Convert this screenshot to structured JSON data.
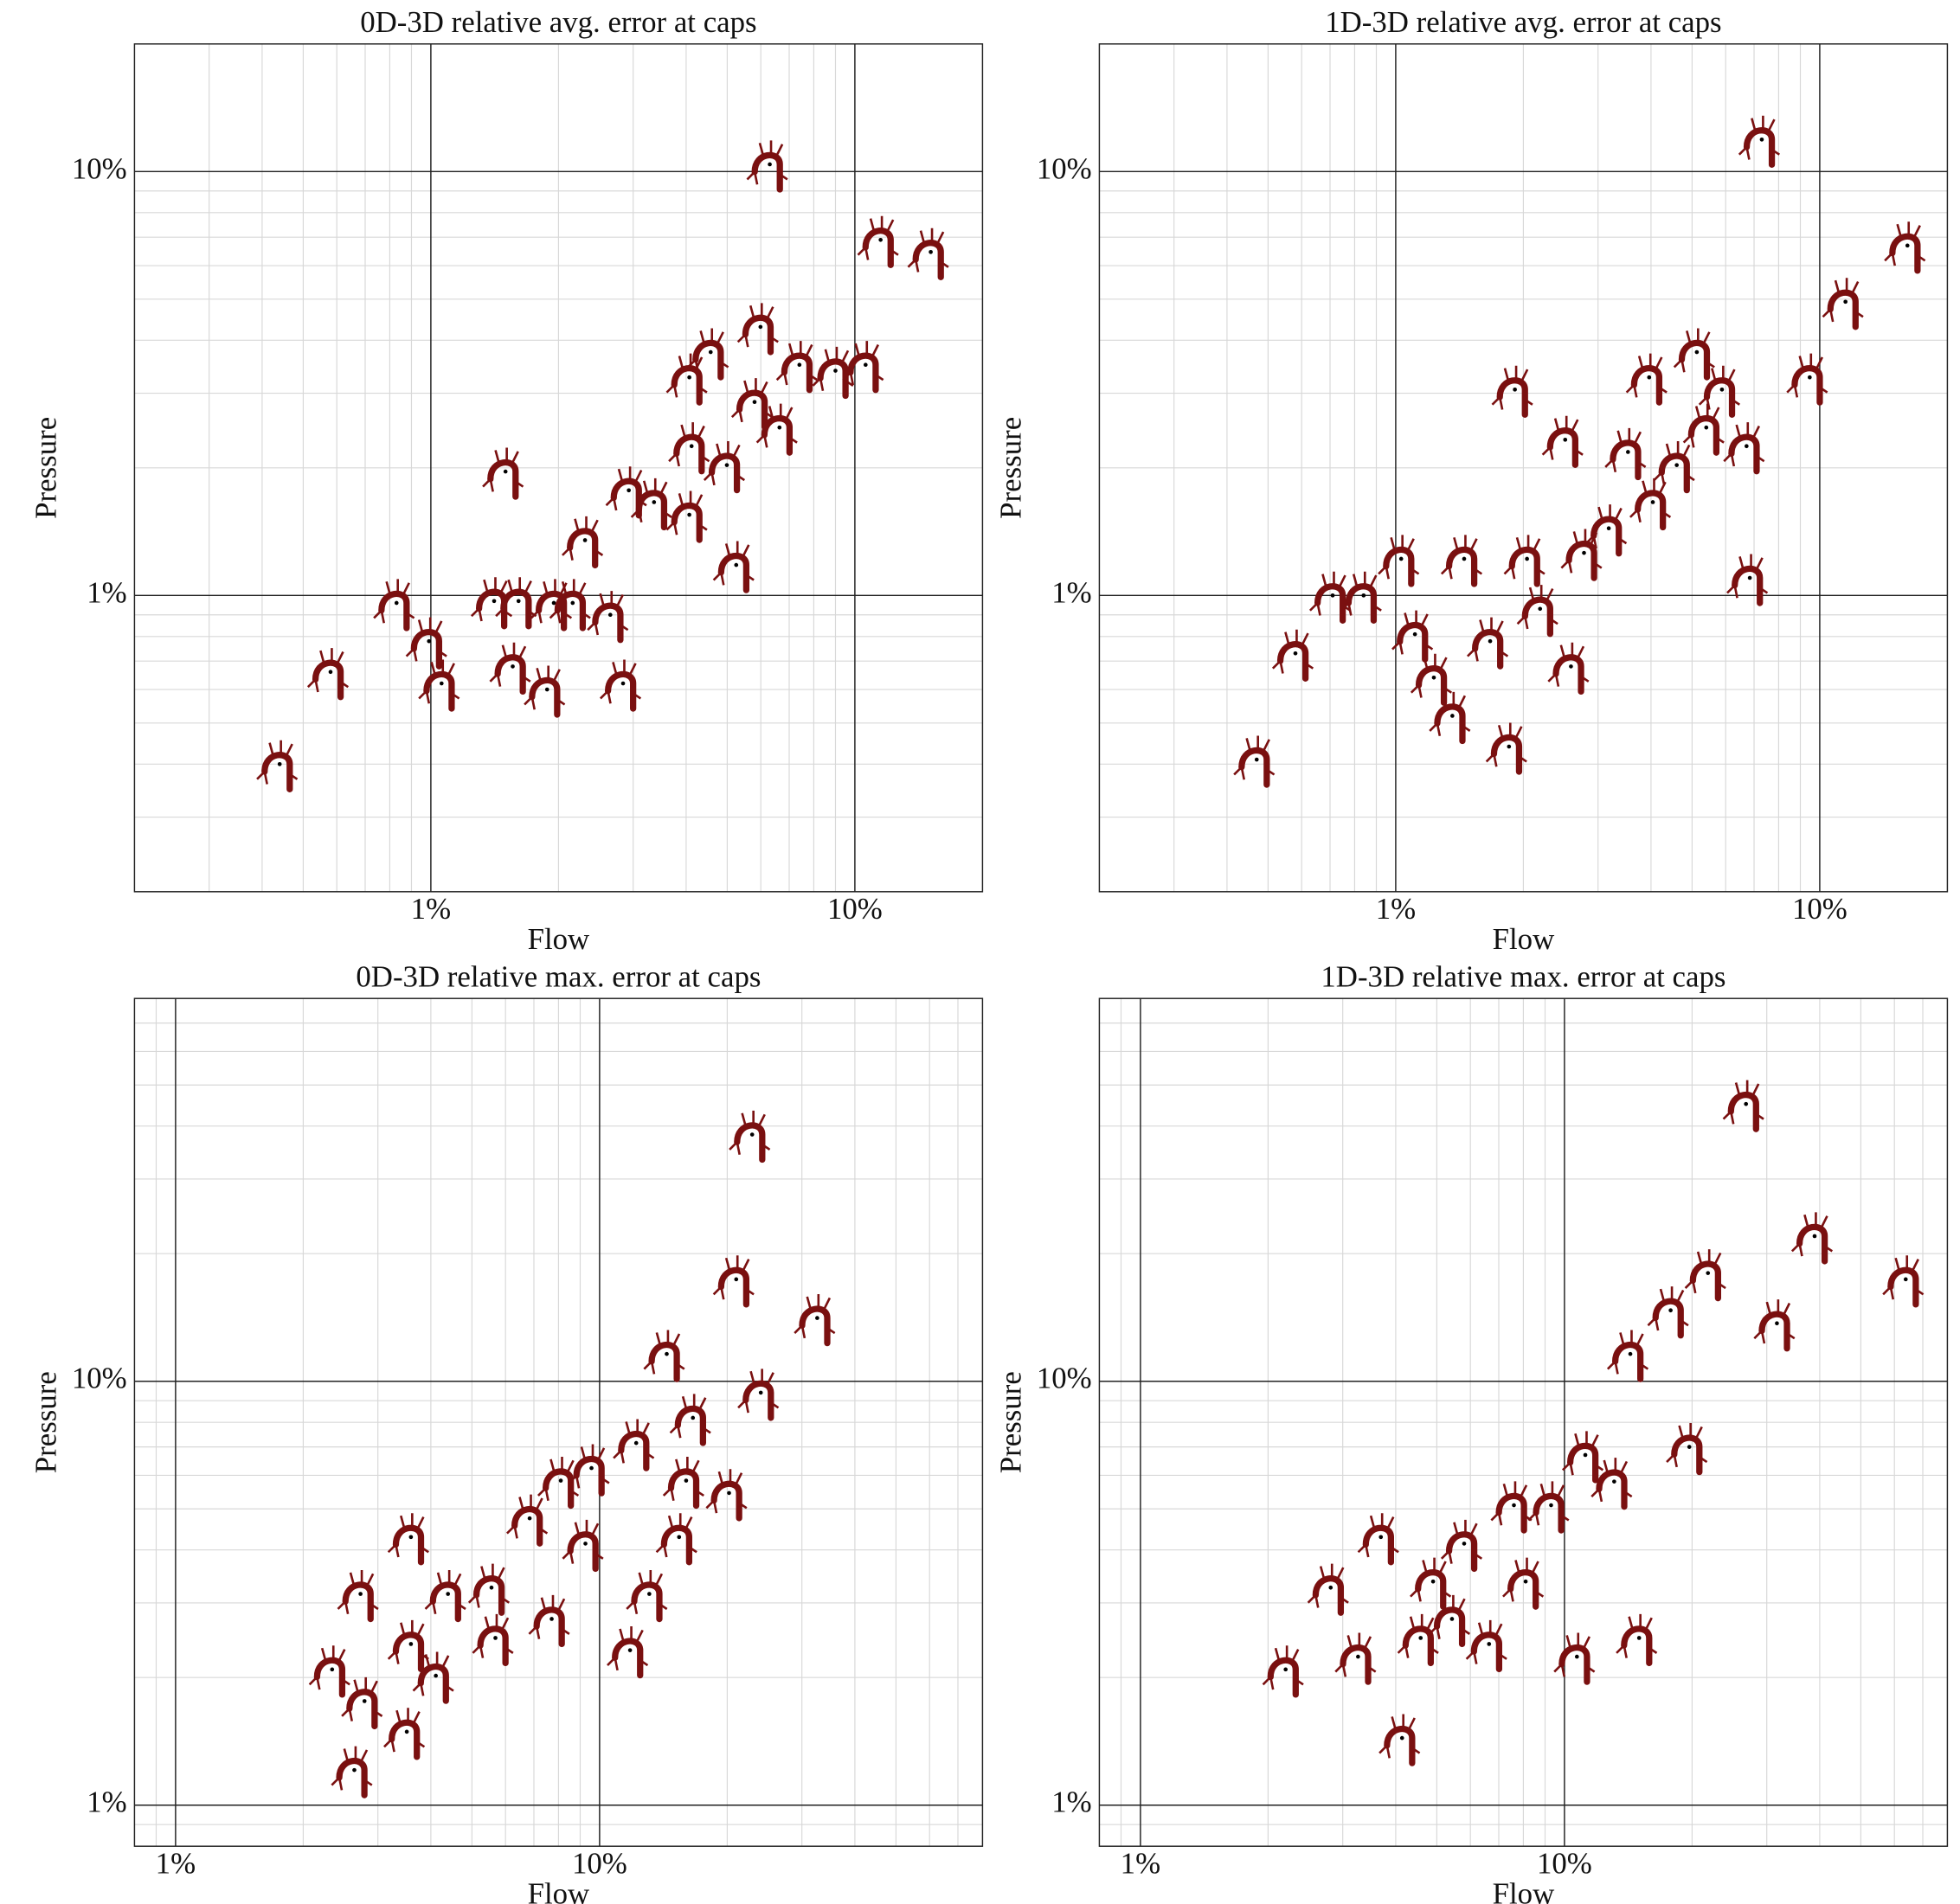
{
  "chart_data": [
    {
      "type": "scatter",
      "title": "0D-3D relative avg. error at caps",
      "x_label": "Flow",
      "y_label": "Pressure",
      "log_scale": true,
      "grid": true,
      "color": "#7a1010",
      "xlim": [
        0.2,
        20
      ],
      "ylim": [
        0.2,
        20
      ],
      "xticks": [
        {
          "value": 1,
          "label": "1%"
        },
        {
          "value": 10,
          "label": "10%"
        }
      ],
      "yticks": [
        {
          "value": 1,
          "label": "1%"
        },
        {
          "value": 10,
          "label": "10%"
        }
      ],
      "x": [
        0.44,
        0.58,
        0.83,
        0.99,
        1.06,
        1.41,
        1.5,
        1.56,
        1.61,
        1.88,
        1.95,
        2.16,
        2.31,
        2.65,
        2.84,
        2.93,
        3.36,
        4.07,
        4.12,
        4.07,
        4.57,
        4.99,
        5.25,
        5.8,
        5.99,
        6.64,
        6.3,
        7.4,
        9.0,
        10.6,
        11.5,
        15.1
      ],
      "values": [
        0.4,
        0.66,
        0.96,
        0.78,
        0.62,
        0.97,
        1.96,
        0.68,
        0.97,
        0.6,
        0.96,
        0.96,
        1.35,
        0.9,
        0.62,
        1.77,
        1.66,
        1.55,
        2.25,
        3.27,
        3.75,
        2.03,
        1.18,
        2.86,
        4.3,
        2.49,
        10.4,
        3.5,
        3.39,
        3.5,
        6.9,
        6.46
      ]
    },
    {
      "type": "scatter",
      "title": "1D-3D relative avg. error at caps",
      "x_label": "Flow",
      "y_label": "Pressure",
      "log_scale": true,
      "grid": true,
      "color": "#7a1010",
      "xlim": [
        0.2,
        20
      ],
      "ylim": [
        0.2,
        20
      ],
      "xticks": [
        {
          "value": 1,
          "label": "1%"
        },
        {
          "value": 10,
          "label": "10%"
        }
      ],
      "yticks": [
        {
          "value": 1,
          "label": "1%"
        },
        {
          "value": 10,
          "label": "10%"
        }
      ],
      "x": [
        0.47,
        0.58,
        0.71,
        0.84,
        1.03,
        1.11,
        1.23,
        1.36,
        1.45,
        1.67,
        1.85,
        1.91,
        2.04,
        2.19,
        2.51,
        2.59,
        2.78,
        3.18,
        3.53,
        3.96,
        4.04,
        4.6,
        5.13,
        5.4,
        5.88,
        6.72,
        6.84,
        7.3,
        9.47,
        11.5,
        16.1
      ],
      "values": [
        0.41,
        0.73,
        1.0,
        1.0,
        1.22,
        0.81,
        0.64,
        0.52,
        1.22,
        0.78,
        0.44,
        3.06,
        1.22,
        0.93,
        2.33,
        0.68,
        1.26,
        1.44,
        2.18,
        3.27,
        1.66,
        2.03,
        3.75,
        2.49,
        3.06,
        2.25,
        1.1,
        11.9,
        3.27,
        4.93,
        6.69
      ]
    },
    {
      "type": "scatter",
      "title": "0D-3D relative max. error at caps",
      "x_label": "Flow",
      "y_label": "Pressure",
      "log_scale": true,
      "grid": true,
      "color": "#7a1010",
      "xlim": [
        0.8,
        80
      ],
      "ylim": [
        0.8,
        80
      ],
      "xticks": [
        {
          "value": 1,
          "label": "1%"
        },
        {
          "value": 10,
          "label": "10%"
        }
      ],
      "yticks": [
        {
          "value": 1,
          "label": "1%"
        },
        {
          "value": 10,
          "label": "10%"
        }
      ],
      "x": [
        2.34,
        2.73,
        2.79,
        2.64,
        3.51,
        3.59,
        3.59,
        4.11,
        4.39,
        5.56,
        5.68,
        6.84,
        7.71,
        8.1,
        9.26,
        9.57,
        11.8,
        12.2,
        13.1,
        14.4,
        15.4,
        16.0,
        16.6,
        20.2,
        21.0,
        22.9,
        24.0,
        32.6
      ],
      "values": [
        2.09,
        3.15,
        1.76,
        1.21,
        1.49,
        2.4,
        4.29,
        2.02,
        3.15,
        3.26,
        2.48,
        4.75,
        2.75,
        5.83,
        4.14,
        6.24,
        2.32,
        7.15,
        3.15,
        11.6,
        4.29,
        5.83,
        8.2,
        5.45,
        17.4,
        38.2,
        9.4,
        14.1
      ]
    },
    {
      "type": "scatter",
      "title": "1D-3D relative max. error at caps",
      "x_label": "Flow",
      "y_label": "Pressure",
      "log_scale": true,
      "grid": true,
      "color": "#7a1010",
      "xlim": [
        0.8,
        80
      ],
      "ylim": [
        0.8,
        80
      ],
      "xticks": [
        {
          "value": 1,
          "label": "1%"
        },
        {
          "value": 10,
          "label": "10%"
        }
      ],
      "yticks": [
        {
          "value": 1,
          "label": "1%"
        },
        {
          "value": 10,
          "label": "10%"
        }
      ],
      "x": [
        2.2,
        2.81,
        3.26,
        3.69,
        4.14,
        4.58,
        4.9,
        5.43,
        5.8,
        6.64,
        7.6,
        8.1,
        9.3,
        10.7,
        11.2,
        13.1,
        14.3,
        15.0,
        17.8,
        19.7,
        21.8,
        26.8,
        31.7,
        38.9,
        63.8
      ],
      "values": [
        2.09,
        3.26,
        2.24,
        4.29,
        1.44,
        2.48,
        3.37,
        2.75,
        4.14,
        2.4,
        5.1,
        3.37,
        5.1,
        2.24,
        6.7,
        5.8,
        11.6,
        2.48,
        14.7,
        7.0,
        18.0,
        45.1,
        13.7,
        22.0,
        17.4
      ]
    }
  ]
}
